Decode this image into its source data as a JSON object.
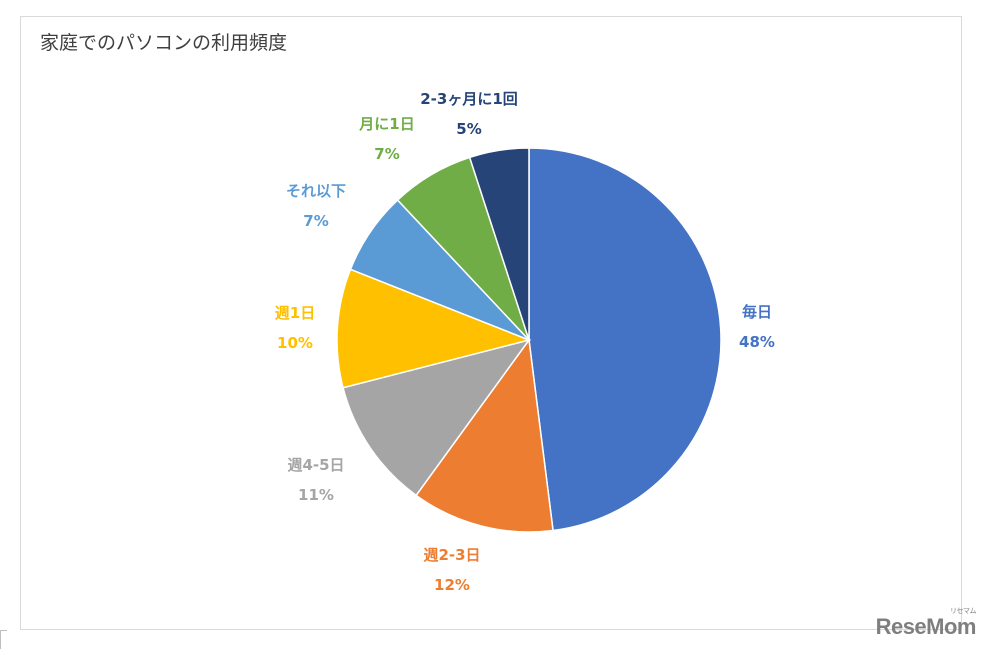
{
  "chart_data": {
    "type": "pie",
    "title": "家庭でのパソコンの利用頻度",
    "slices": [
      {
        "label": "毎日",
        "value": 48,
        "value_label": "48%",
        "color": "#4472c4"
      },
      {
        "label": "週2-3日",
        "value": 12,
        "value_label": "12%",
        "color": "#ed7d31"
      },
      {
        "label": "週4-5日",
        "value": 11,
        "value_label": "11%",
        "color": "#a5a5a5"
      },
      {
        "label": "週1日",
        "value": 10,
        "value_label": "10%",
        "color": "#ffc000"
      },
      {
        "label": "それ以下",
        "value": 7,
        "value_label": "7%",
        "color": "#5b9bd5"
      },
      {
        "label": "月に1日",
        "value": 7,
        "value_label": "7%",
        "color": "#70ad47"
      },
      {
        "label": "2-3ヶ月に1回",
        "value": 5,
        "value_label": "5%",
        "color": "#264478"
      }
    ],
    "start_angle": "12 o'clock",
    "direction": "clockwise",
    "legend": "none",
    "data_labels": "outside"
  },
  "watermark": {
    "text": "ReseMom",
    "small": "リセマム"
  }
}
